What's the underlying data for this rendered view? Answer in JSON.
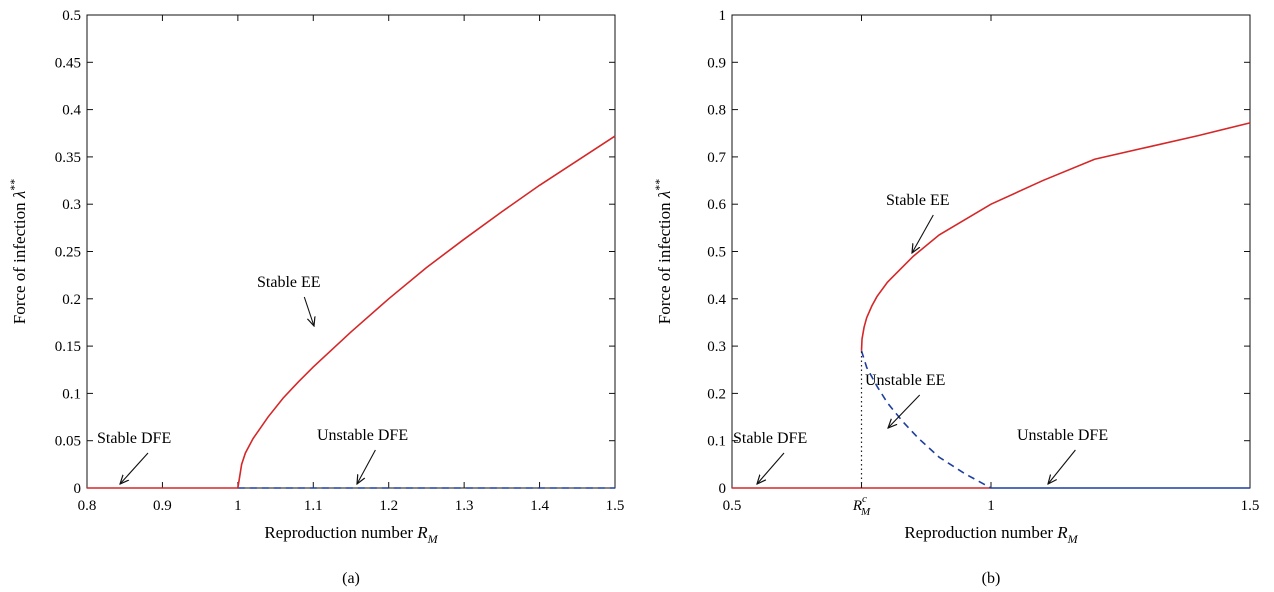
{
  "chart_data": [
    {
      "type": "line",
      "caption": "(a)",
      "xlabel": "Reproduction number R_M",
      "ylabel": "Force of infection λ**",
      "xlim": [
        0.8,
        1.5
      ],
      "ylim": [
        0,
        0.5
      ],
      "xticks": [
        0.8,
        0.9,
        1,
        1.1,
        1.2,
        1.3,
        1.4,
        1.5
      ],
      "xtick_labels": [
        "0.8",
        "0.9",
        "1",
        "1.1",
        "1.2",
        "1.3",
        "1.4",
        "1.5"
      ],
      "yticks": [
        0,
        0.05,
        0.1,
        0.15,
        0.2,
        0.25,
        0.3,
        0.35,
        0.4,
        0.45,
        0.5
      ],
      "ytick_labels": [
        "0",
        "0.05",
        "0.1",
        "0.15",
        "0.2",
        "0.25",
        "0.3",
        "0.35",
        "0.4",
        "0.45",
        "0.5"
      ],
      "grid": false,
      "series": [
        {
          "color": "#d62728",
          "style": "solid",
          "x": [
            0.8,
            1.0
          ],
          "y": [
            0,
            0
          ]
        },
        {
          "color": "#1f3fa0",
          "style": "dashed",
          "x": [
            1.0,
            1.5
          ],
          "y": [
            0,
            0
          ]
        },
        {
          "color": "#d62728",
          "style": "solid",
          "x": [
            1.0,
            1.005,
            1.01,
            1.02,
            1.04,
            1.06,
            1.08,
            1.1,
            1.15,
            1.2,
            1.25,
            1.3,
            1.35,
            1.4,
            1.45,
            1.5
          ],
          "y": [
            0,
            0.025,
            0.037,
            0.052,
            0.075,
            0.095,
            0.112,
            0.128,
            0.165,
            0.2,
            0.233,
            0.263,
            0.292,
            0.32,
            0.346,
            0.372
          ]
        }
      ],
      "annotations": [
        {
          "text": "Stable EE",
          "point": [
            1.1,
            0.165
          ]
        },
        {
          "text": "Stable DFE",
          "point": [
            0.84,
            0.0
          ]
        },
        {
          "text": "Unstable DFE",
          "point": [
            1.16,
            0.0
          ]
        }
      ]
    },
    {
      "type": "line",
      "caption": "(b)",
      "xlabel": "Reproduction number R_M",
      "ylabel": "Force of infection λ**",
      "xlim": [
        0.5,
        1.5
      ],
      "ylim": [
        0,
        1
      ],
      "xtick_labels": [
        "0.5",
        "R_M^c",
        "1",
        "1.5"
      ],
      "xticks": [
        0.5,
        0.75,
        1,
        1.5
      ],
      "yticks": [
        0,
        0.1,
        0.2,
        0.3,
        0.4,
        0.5,
        0.6,
        0.7,
        0.8,
        0.9,
        1
      ],
      "ytick_labels": [
        "0",
        "0.1",
        "0.2",
        "0.3",
        "0.4",
        "0.5",
        "0.6",
        "0.7",
        "0.8",
        "0.9",
        "1"
      ],
      "grid": false,
      "series": [
        {
          "color": "#d62728",
          "style": "solid",
          "x": [
            0.5,
            1.0
          ],
          "y": [
            0,
            0
          ]
        },
        {
          "color": "#1f3fa0",
          "style": "solid",
          "x": [
            1.0,
            1.5
          ],
          "y": [
            0,
            0
          ]
        },
        {
          "color": "#d62728",
          "style": "solid",
          "x": [
            0.75,
            0.751,
            0.755,
            0.76,
            0.77,
            0.78,
            0.8,
            0.85,
            0.9,
            1.0,
            1.1,
            1.2,
            1.3,
            1.4,
            1.5
          ],
          "y": [
            0.29,
            0.315,
            0.34,
            0.36,
            0.385,
            0.405,
            0.435,
            0.49,
            0.535,
            0.6,
            0.65,
            0.695,
            0.72,
            0.745,
            0.772
          ]
        },
        {
          "color": "#1f3fa0",
          "style": "dashed",
          "x": [
            0.75,
            0.76,
            0.78,
            0.8,
            0.83,
            0.86,
            0.9,
            0.95,
            1.0
          ],
          "y": [
            0.29,
            0.255,
            0.215,
            0.18,
            0.14,
            0.105,
            0.065,
            0.03,
            0.0
          ]
        },
        {
          "color": "#222222",
          "style": "dotted",
          "x": [
            0.75,
            0.75
          ],
          "y": [
            0,
            0.29
          ]
        }
      ],
      "annotations": [
        {
          "text": "Stable EE",
          "point": [
            0.84,
            0.5
          ]
        },
        {
          "text": "Unstable EE",
          "point": [
            0.81,
            0.125
          ]
        },
        {
          "text": "Stable DFE",
          "point": [
            0.57,
            0.0
          ]
        },
        {
          "text": "Unstable DFE",
          "point": [
            1.12,
            0.0
          ]
        }
      ]
    }
  ]
}
